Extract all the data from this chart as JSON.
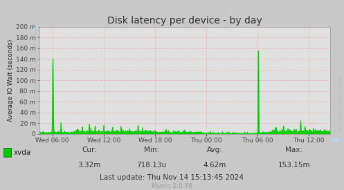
{
  "title": "Disk latency per device - by day",
  "ylabel": "Average IO Wait (seconds)",
  "background_color": "#c8c8c8",
  "plot_bg_color": "#e0e0e0",
  "grid_color": "#ff8888",
  "line_color": "#00cc00",
  "fill_color": "#00cc00",
  "border_color": "#999999",
  "ytick_labels": [
    "0",
    "20 m",
    "40 m",
    "60 m",
    "80 m",
    "100 m",
    "120 m",
    "140 m",
    "160 m",
    "180 m",
    "200 m"
  ],
  "ytick_values": [
    0,
    0.02,
    0.04,
    0.06,
    0.08,
    0.1,
    0.12,
    0.14,
    0.16,
    0.18,
    0.2
  ],
  "xtick_labels": [
    "Wed 06:00",
    "Wed 12:00",
    "Wed 18:00",
    "Thu 00:00",
    "Thu 06:00",
    "Thu 12:00"
  ],
  "ymax": 0.2,
  "ymin": 0.0,
  "legend_label": "xvda",
  "legend_color": "#00cc00",
  "cur_label": "Cur:",
  "cur_val": "3.32m",
  "min_label": "Min:",
  "min_val": "718.13u",
  "avg_label": "Avg:",
  "avg_val": "4.62m",
  "max_label": "Max:",
  "max_val": "153.15m",
  "last_update": "Last update: Thu Nov 14 15:13:45 2024",
  "munin_version": "Munin 2.0.76",
  "watermark": "RRDTOOL / TOBI OETIKER",
  "title_color": "#333333",
  "text_color": "#222222",
  "stats_color": "#333333",
  "munin_color": "#999999",
  "watermark_color": "#bbbbbb",
  "tick_color": "#444444",
  "arrow_color": "#aaddff"
}
